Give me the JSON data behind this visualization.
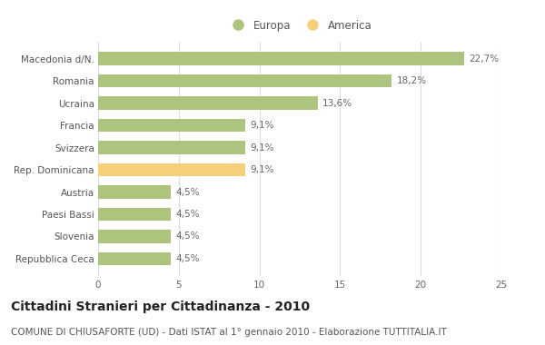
{
  "categories": [
    "Macedonia d/N.",
    "Romania",
    "Ucraina",
    "Francia",
    "Svizzera",
    "Rep. Dominicana",
    "Austria",
    "Paesi Bassi",
    "Slovenia",
    "Repubblica Ceca"
  ],
  "values": [
    22.7,
    18.2,
    13.6,
    9.1,
    9.1,
    9.1,
    4.5,
    4.5,
    4.5,
    4.5
  ],
  "labels": [
    "22,7%",
    "18,2%",
    "13,6%",
    "9,1%",
    "9,1%",
    "9,1%",
    "4,5%",
    "4,5%",
    "4,5%",
    "4,5%"
  ],
  "colors": [
    "#adc47e",
    "#adc47e",
    "#adc47e",
    "#adc47e",
    "#adc47e",
    "#f5d07a",
    "#adc47e",
    "#adc47e",
    "#adc47e",
    "#adc47e"
  ],
  "europa_color": "#adc47e",
  "america_color": "#f5d07a",
  "xlim": [
    0,
    25
  ],
  "xticks": [
    0,
    5,
    10,
    15,
    20,
    25
  ],
  "title": "Cittadini Stranieri per Cittadinanza - 2010",
  "subtitle": "COMUNE DI CHIUSAFORTE (UD) - Dati ISTAT al 1° gennaio 2010 - Elaborazione TUTTITALIA.IT",
  "legend_europa": "Europa",
  "legend_america": "America",
  "background_color": "#ffffff",
  "bar_edge_color": "none",
  "grid_color": "#dddddd",
  "title_fontsize": 10,
  "subtitle_fontsize": 7.5,
  "label_fontsize": 7.5,
  "tick_fontsize": 7.5,
  "legend_fontsize": 8.5
}
